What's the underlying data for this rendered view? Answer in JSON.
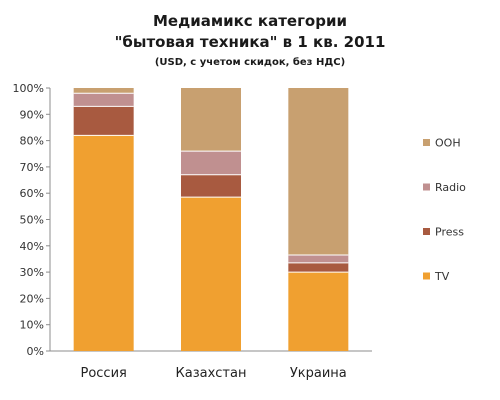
{
  "chart_data": {
    "type": "bar",
    "stacked": true,
    "title_line1": "Медиамикс категории",
    "title_line2": "\"бытовая техника\" в 1 кв. 2011",
    "subtitle": "(USD, с учетом скидок,  без НДС)",
    "xlabel": "",
    "ylabel": "",
    "ylim": [
      0,
      100
    ],
    "y_ticks": [
      "0%",
      "10%",
      "20%",
      "30%",
      "40%",
      "50%",
      "60%",
      "70%",
      "80%",
      "90%",
      "100%"
    ],
    "grid": false,
    "legend_position": "right",
    "categories": [
      "Россия",
      "Казахстан",
      "Украина"
    ],
    "series": [
      {
        "name": "TV",
        "color": "#F0A030",
        "values": [
          82,
          58.5,
          30
        ]
      },
      {
        "name": "Press",
        "color": "#A85A40",
        "values": [
          11,
          8.5,
          3.5
        ]
      },
      {
        "name": "Radio",
        "color": "#C09090",
        "values": [
          5,
          9,
          3
        ]
      },
      {
        "name": "OOH",
        "color": "#C8A070",
        "values": [
          2,
          24,
          63.5
        ]
      }
    ]
  }
}
